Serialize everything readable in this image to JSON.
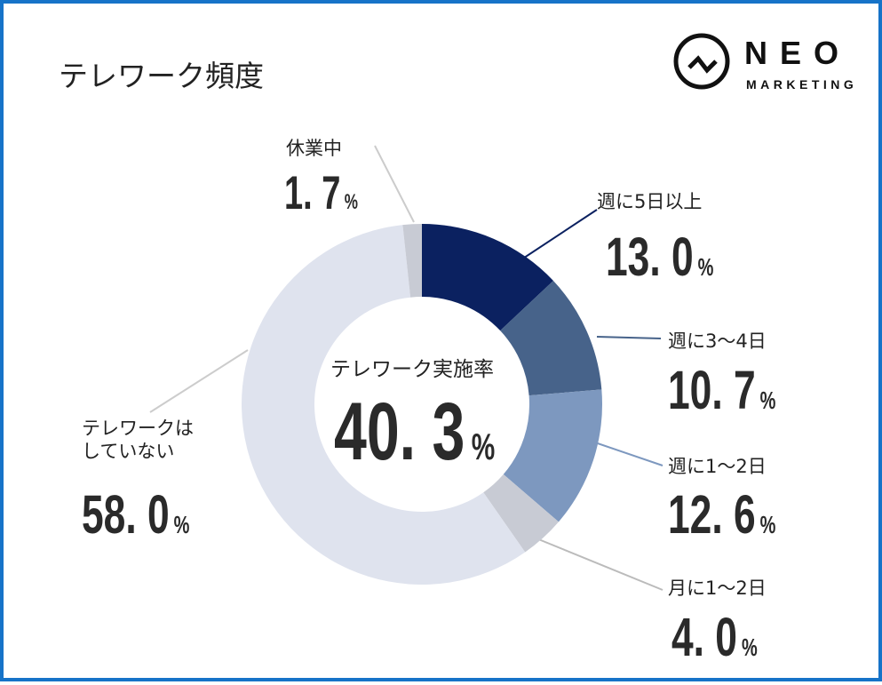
{
  "title": "テレワーク頻度",
  "logo": {
    "main": "NEO",
    "sub": "MARKETING"
  },
  "chart_data": {
    "type": "pie",
    "subtype": "donut",
    "title": "テレワーク頻度",
    "center_label": "テレワーク実施率",
    "center_value": "40. 3",
    "center_unit": "%",
    "slices": [
      {
        "label": "週に5日以上",
        "value": 13.0,
        "display": "13. 0",
        "color": "#0b2160"
      },
      {
        "label": "週に3～4日",
        "value": 10.7,
        "display": "10. 7",
        "color": "#47638a"
      },
      {
        "label": "週に1～2日",
        "value": 12.6,
        "display": "12. 6",
        "color": "#7d98bf"
      },
      {
        "label": "月に1～2日",
        "value": 4.0,
        "display": "4. 0",
        "color": "#c8cbd4"
      },
      {
        "label": "テレワークはしていない",
        "value": 58.0,
        "display": "58. 0",
        "color": "#dfe3ee"
      },
      {
        "label": "休業中",
        "value": 1.7,
        "display": "1. 7",
        "color": "#c8cbd4"
      }
    ],
    "unit": "%"
  }
}
